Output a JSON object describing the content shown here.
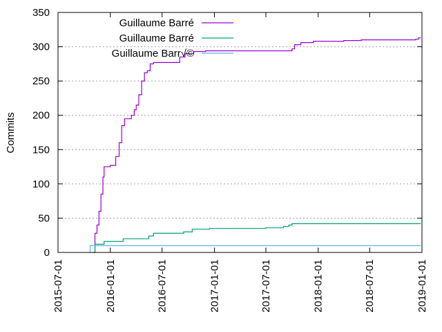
{
  "chart_data": {
    "type": "line",
    "title": "",
    "xlabel": "",
    "ylabel": "Commits",
    "xlim": [
      "2015-07-01",
      "2019-01-01"
    ],
    "ylim": [
      0,
      350
    ],
    "y_ticks": [
      "0",
      "50",
      "100",
      "150",
      "200",
      "250",
      "300",
      "350"
    ],
    "x_ticks": [
      "2015-07-01",
      "2016-01-01",
      "2016-07-01",
      "2017-01-01",
      "2017-07-01",
      "2018-01-01",
      "2018-07-01",
      "2019-01-01"
    ],
    "grid": "horizontal dotted",
    "legend_position": "top-left",
    "series": [
      {
        "name": "Guillaume Barré",
        "color": "#9400d3",
        "step": true,
        "points": [
          [
            "2015-11-01",
            0
          ],
          [
            "2015-11-08",
            28
          ],
          [
            "2015-11-15",
            40
          ],
          [
            "2015-11-22",
            60
          ],
          [
            "2015-11-29",
            85
          ],
          [
            "2015-12-06",
            110
          ],
          [
            "2015-12-10",
            125
          ],
          [
            "2016-01-01",
            127
          ],
          [
            "2016-01-20",
            140
          ],
          [
            "2016-02-01",
            160
          ],
          [
            "2016-02-10",
            185
          ],
          [
            "2016-02-20",
            195
          ],
          [
            "2016-03-15",
            200
          ],
          [
            "2016-03-25",
            208
          ],
          [
            "2016-04-01",
            215
          ],
          [
            "2016-04-10",
            230
          ],
          [
            "2016-04-20",
            250
          ],
          [
            "2016-04-30",
            262
          ],
          [
            "2016-05-10",
            265
          ],
          [
            "2016-05-20",
            275
          ],
          [
            "2016-06-01",
            277
          ],
          [
            "2016-09-01",
            285
          ],
          [
            "2016-09-20",
            290
          ],
          [
            "2016-10-20",
            293
          ],
          [
            "2016-12-01",
            294
          ],
          [
            "2017-10-01",
            297
          ],
          [
            "2017-10-10",
            303
          ],
          [
            "2017-11-01",
            306
          ],
          [
            "2017-12-15",
            308
          ],
          [
            "2018-04-01",
            309
          ],
          [
            "2018-06-01",
            310
          ],
          [
            "2018-12-10",
            311
          ],
          [
            "2018-12-20",
            313
          ],
          [
            "2018-12-28",
            313
          ]
        ]
      },
      {
        "name": "Guillaume Barré",
        "color": "#009e73",
        "step": true,
        "points": [
          [
            "2015-11-05",
            0
          ],
          [
            "2015-11-08",
            12
          ],
          [
            "2015-12-10",
            16
          ],
          [
            "2016-02-15",
            20
          ],
          [
            "2016-05-15",
            24
          ],
          [
            "2016-06-01",
            28
          ],
          [
            "2016-09-15",
            30
          ],
          [
            "2016-10-15",
            34
          ],
          [
            "2016-12-15",
            35
          ],
          [
            "2017-07-01",
            36
          ],
          [
            "2017-09-01",
            38
          ],
          [
            "2017-09-20",
            40
          ],
          [
            "2017-10-01",
            42
          ],
          [
            "2018-12-28",
            42
          ]
        ]
      },
      {
        "name": "Guillaume Barr√©",
        "color": "#56b4e9",
        "step": true,
        "points": [
          [
            "2015-10-20",
            0
          ],
          [
            "2015-10-22",
            10
          ],
          [
            "2018-12-28",
            10
          ]
        ]
      }
    ]
  }
}
